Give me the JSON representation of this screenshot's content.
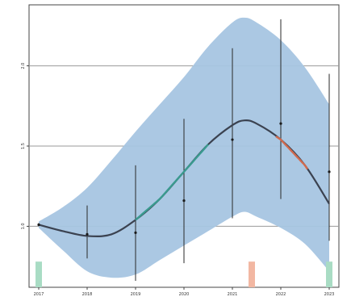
{
  "chart_data": {
    "type": "line",
    "title": "",
    "xlabel": "",
    "ylabel": "",
    "x_ticks": [
      "2017",
      "2018",
      "2019",
      "2020",
      "2021",
      "2022",
      "2023"
    ],
    "y_ticks": [
      "1.0",
      "1.5",
      "2.0"
    ],
    "xlim": [
      2016.8,
      2023.2
    ],
    "ylim": [
      0.62,
      2.38
    ],
    "grid": "horizontal",
    "colors": {
      "band": "#a6c5e2",
      "line": "#3b4250",
      "trend_up": "#3a9a8f",
      "trend_down": "#d06a4e",
      "errorbar": "#2a2a2a",
      "marker_green": "#a9dcc4",
      "marker_orange": "#f2b7a2"
    },
    "observations": [
      {
        "x": 2017.0,
        "y": 1.01,
        "low": 1.0,
        "high": 1.02
      },
      {
        "x": 2018.0,
        "y": 0.95,
        "low": 0.8,
        "high": 1.13
      },
      {
        "x": 2019.0,
        "y": 0.96,
        "low": 0.66,
        "high": 1.38
      },
      {
        "x": 2020.0,
        "y": 1.16,
        "low": 0.77,
        "high": 1.67
      },
      {
        "x": 2021.0,
        "y": 1.54,
        "low": 1.05,
        "high": 2.11
      },
      {
        "x": 2022.0,
        "y": 1.64,
        "low": 1.17,
        "high": 2.29
      },
      {
        "x": 2023.0,
        "y": 1.34,
        "low": 0.91,
        "high": 1.95
      }
    ],
    "fit_line": {
      "x": [
        2017.0,
        2017.5,
        2018.0,
        2018.5,
        2019.0,
        2019.5,
        2020.0,
        2020.5,
        2021.0,
        2021.25,
        2021.5,
        2022.0,
        2022.5,
        2023.0
      ],
      "y": [
        1.01,
        0.97,
        0.94,
        0.95,
        1.04,
        1.17,
        1.34,
        1.51,
        1.63,
        1.66,
        1.64,
        1.54,
        1.38,
        1.14
      ]
    },
    "trend_segments": [
      {
        "direction": "up",
        "from": 2019.0,
        "to": 2020.5
      },
      {
        "direction": "down",
        "from": 2021.9,
        "to": 2022.55
      }
    ],
    "band": {
      "x": [
        2017.0,
        2017.5,
        2018.0,
        2018.5,
        2019.0,
        2019.5,
        2020.0,
        2020.5,
        2021.0,
        2021.25,
        2021.5,
        2022.0,
        2022.5,
        2023.0
      ],
      "upper": [
        1.03,
        1.12,
        1.24,
        1.41,
        1.59,
        1.76,
        1.93,
        2.12,
        2.27,
        2.3,
        2.27,
        2.16,
        1.99,
        1.76
      ],
      "lower": [
        0.99,
        0.85,
        0.72,
        0.68,
        0.7,
        0.79,
        0.88,
        0.97,
        1.06,
        1.09,
        1.06,
        0.99,
        0.89,
        0.72
      ]
    },
    "markers": [
      {
        "x": 2017.0,
        "height": 0.16,
        "color": "green"
      },
      {
        "x": 2021.4,
        "height": 0.16,
        "color": "orange"
      },
      {
        "x": 2023.0,
        "height": 0.16,
        "color": "green"
      }
    ]
  }
}
